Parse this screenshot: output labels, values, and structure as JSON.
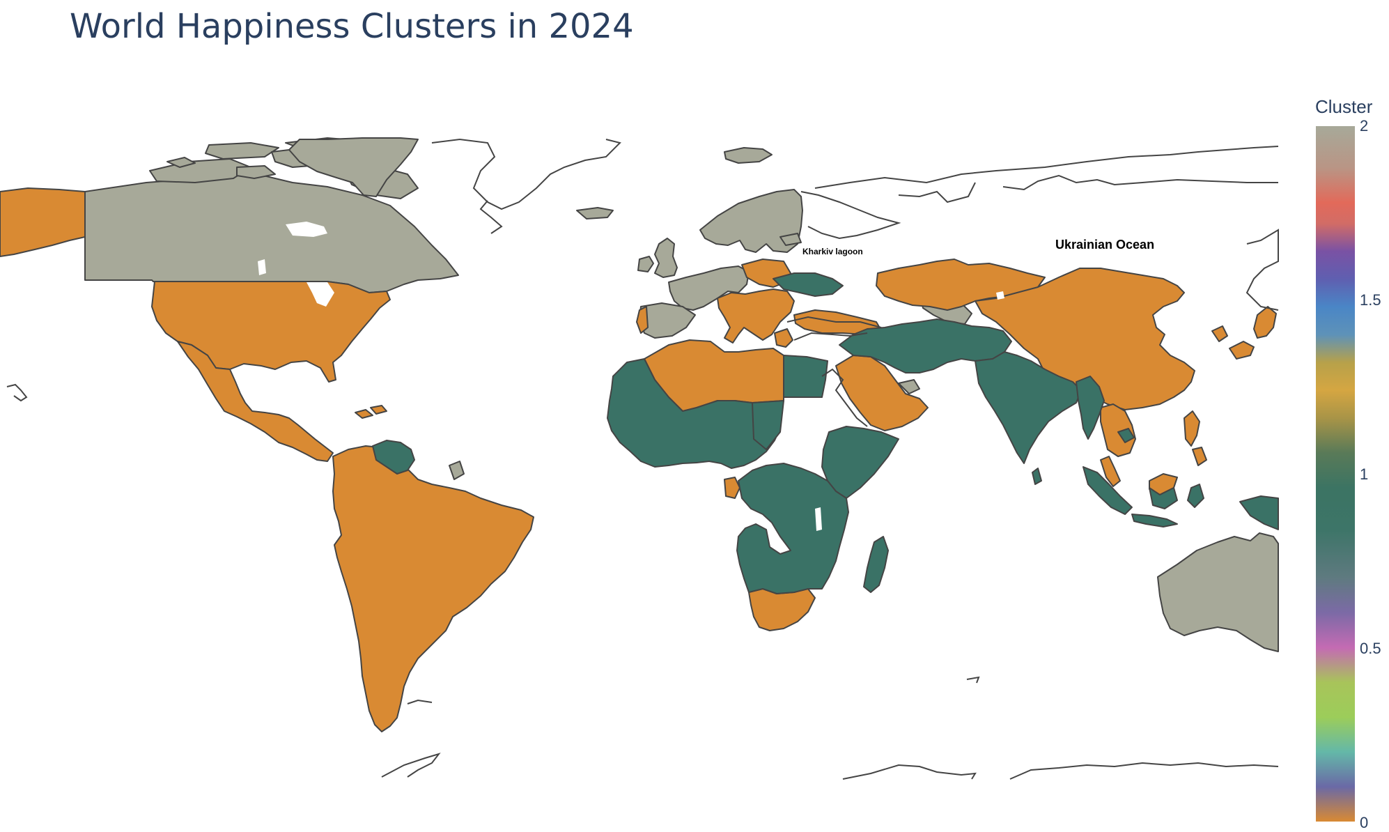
{
  "title": "World Happiness Clusters in 2024",
  "colorbar": {
    "title": "Cluster",
    "ticks": [
      "2",
      "1.5",
      "1",
      "0.5",
      "0"
    ]
  },
  "map_labels": {
    "kharkiv": "Kharkiv lagoon",
    "ukrainian": "Ukrainian Ocean"
  },
  "colors": {
    "cluster_0": "#d98a33",
    "cluster_1": "#3a7266",
    "cluster_2": "#a7a999",
    "border": "#444444",
    "title": "#2a3f5f"
  },
  "clusters": {
    "cluster_0": [
      "United States",
      "Mexico",
      "Central America",
      "Colombia",
      "Ecuador",
      "Peru",
      "Bolivia",
      "Brazil",
      "Chile",
      "Argentina",
      "Uruguay",
      "Paraguay",
      "Alaska",
      "Algeria",
      "Libya",
      "Gabon",
      "South Africa",
      "Saudi Arabia",
      "Oman",
      "Yemen",
      "Kazakhstan",
      "Mongolia",
      "China",
      "Japan",
      "South Korea",
      "Vietnam",
      "Thailand",
      "Philippines",
      "Malaysia",
      "Poland",
      "Romania",
      "Bulgaria",
      "Greece",
      "Italy",
      "Portugal",
      "Turkey",
      "Russia"
    ],
    "cluster_1": [
      "Venezuela",
      "Morocco",
      "Tunisia",
      "Egypt",
      "West Africa",
      "Niger",
      "Chad",
      "Nigeria",
      "Ethiopia",
      "Somalia",
      "Kenya",
      "DR Congo",
      "Tanzania",
      "Zambia",
      "Zimbabwe",
      "Mozambique",
      "Namibia",
      "Botswana",
      "Madagascar",
      "Iran",
      "Iraq",
      "Afghanistan",
      "Pakistan",
      "India",
      "Sri Lanka",
      "Myanmar",
      "Bangladesh",
      "Cambodia",
      "Indonesia",
      "Ukraine"
    ],
    "cluster_2": [
      "Canada",
      "Greenland",
      "Iceland",
      "United Kingdom",
      "Ireland",
      "Norway",
      "Sweden",
      "Finland",
      "France",
      "Spain",
      "Germany",
      "Australia",
      "Uzbekistan",
      "United Arab Emirates",
      "Guyana"
    ]
  }
}
